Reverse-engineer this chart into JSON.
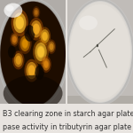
{
  "caption_line1": "B3 clearing zone in starch agar plate (lef",
  "caption_line2": "pase activity in tributyrin agar plate (right",
  "caption_fontsize": 5.8,
  "caption_color": "#333333",
  "fig_bg": "#e8e4e0",
  "left_bg": "#c8c4c0",
  "right_bg": "#d0ccca",
  "plate_left_bg": "#2a1200",
  "plate_right_color": "#dedad6"
}
